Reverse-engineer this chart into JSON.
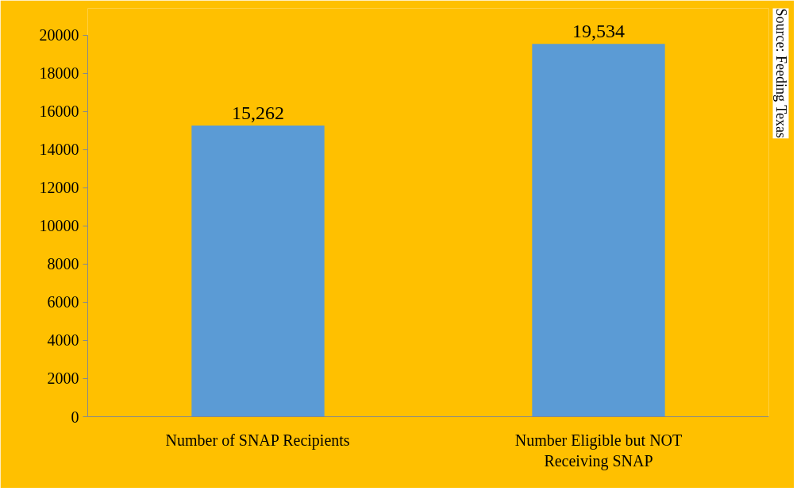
{
  "chart_data": {
    "type": "bar",
    "categories": [
      "Number of SNAP Recipients",
      "Number Eligible but NOT Receiving SNAP"
    ],
    "values": [
      15262,
      19534
    ],
    "color": "#5b9bd5",
    "value_labels": [
      "15,262",
      "19,534"
    ],
    "ylim": [
      0,
      20000
    ],
    "yticks": [
      0,
      2000,
      4000,
      6000,
      8000,
      10000,
      12000,
      14000,
      16000,
      18000,
      20000
    ],
    "grid": false,
    "annotations": [
      "Source: Feeding Texas"
    ]
  }
}
